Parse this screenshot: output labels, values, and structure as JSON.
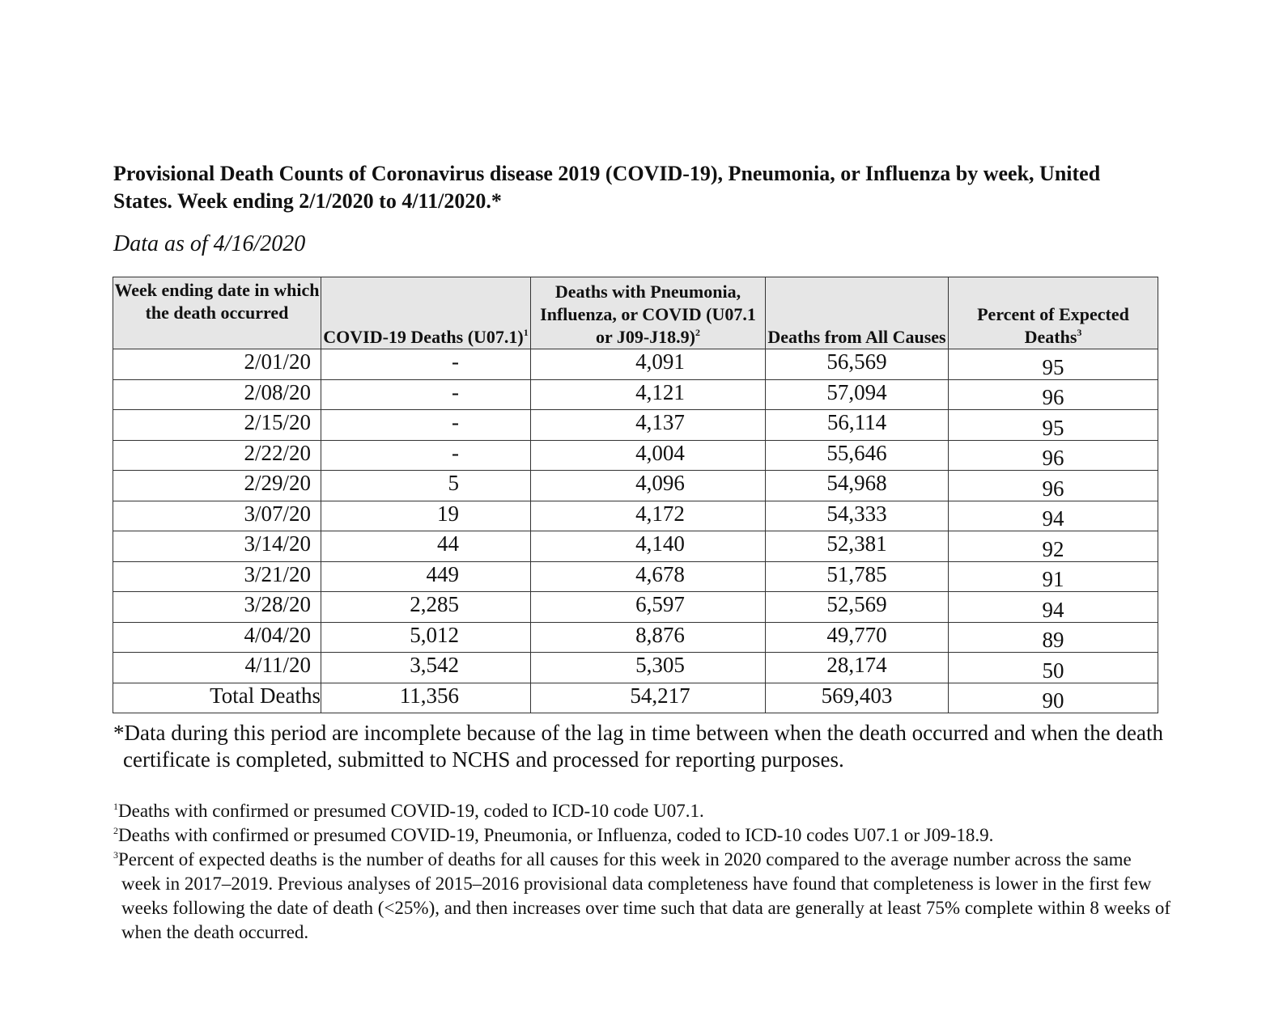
{
  "title": "Provisional Death Counts of Coronavirus disease 2019 (COVID-19), Pneumonia, or Influenza by week, United States. Week ending 2/1/2020 to 4/11/2020.*",
  "data_as_of": "Data as of 4/16/2020",
  "table": {
    "headers": [
      {
        "text": "Week ending date in which the death occurred",
        "sup": ""
      },
      {
        "text": "COVID-19 Deaths (U07.1)",
        "sup": "1"
      },
      {
        "text": "Deaths with Pneumonia, Influenza, or COVID (U07.1 or J09-J18.9)",
        "sup": "2"
      },
      {
        "text": "Deaths from All Causes",
        "sup": ""
      },
      {
        "text": "Percent of Expected Deaths",
        "sup": "3"
      }
    ],
    "rows": [
      [
        "2/01/20",
        "-",
        "4,091",
        "56,569",
        "95"
      ],
      [
        "2/08/20",
        "-",
        "4,121",
        "57,094",
        "96"
      ],
      [
        "2/15/20",
        "-",
        "4,137",
        "56,114",
        "95"
      ],
      [
        "2/22/20",
        "-",
        "4,004",
        "55,646",
        "96"
      ],
      [
        "2/29/20",
        "5",
        "4,096",
        "54,968",
        "96"
      ],
      [
        "3/07/20",
        "19",
        "4,172",
        "54,333",
        "94"
      ],
      [
        "3/14/20",
        "44",
        "4,140",
        "52,381",
        "92"
      ],
      [
        "3/21/20",
        "449",
        "4,678",
        "51,785",
        "91"
      ],
      [
        "3/28/20",
        "2,285",
        "6,597",
        "52,569",
        "94"
      ],
      [
        "4/04/20",
        "5,012",
        "8,876",
        "49,770",
        "89"
      ],
      [
        "4/11/20",
        "3,542",
        "5,305",
        "28,174",
        "50"
      ]
    ],
    "total": [
      "Total Deaths",
      "11,356",
      "54,217",
      "569,403",
      "90"
    ]
  },
  "note": "*Data during this period are incomplete because of the lag in time between when the death occurred and when the death certificate is completed, submitted to NCHS and processed for reporting purposes.",
  "footnotes": [
    {
      "mark": "1",
      "text": "Deaths with confirmed or presumed COVID-19, coded to ICD-10 code U07.1."
    },
    {
      "mark": "2",
      "text": "Deaths with confirmed or presumed COVID-19, Pneumonia, or Influenza, coded to ICD-10 codes U07.1 or J09-18.9."
    },
    {
      "mark": "3",
      "text": "Percent of expected deaths is the number of deaths for all causes for this week in 2020 compared to the average number across the same week in 2017–2019. Previous analyses of 2015–2016 provisional data completeness have found that completeness is lower in the first few weeks following the date of death (<25%), and then increases over time such that data are generally at least 75% complete within 8 weeks of when the death occurred."
    }
  ]
}
